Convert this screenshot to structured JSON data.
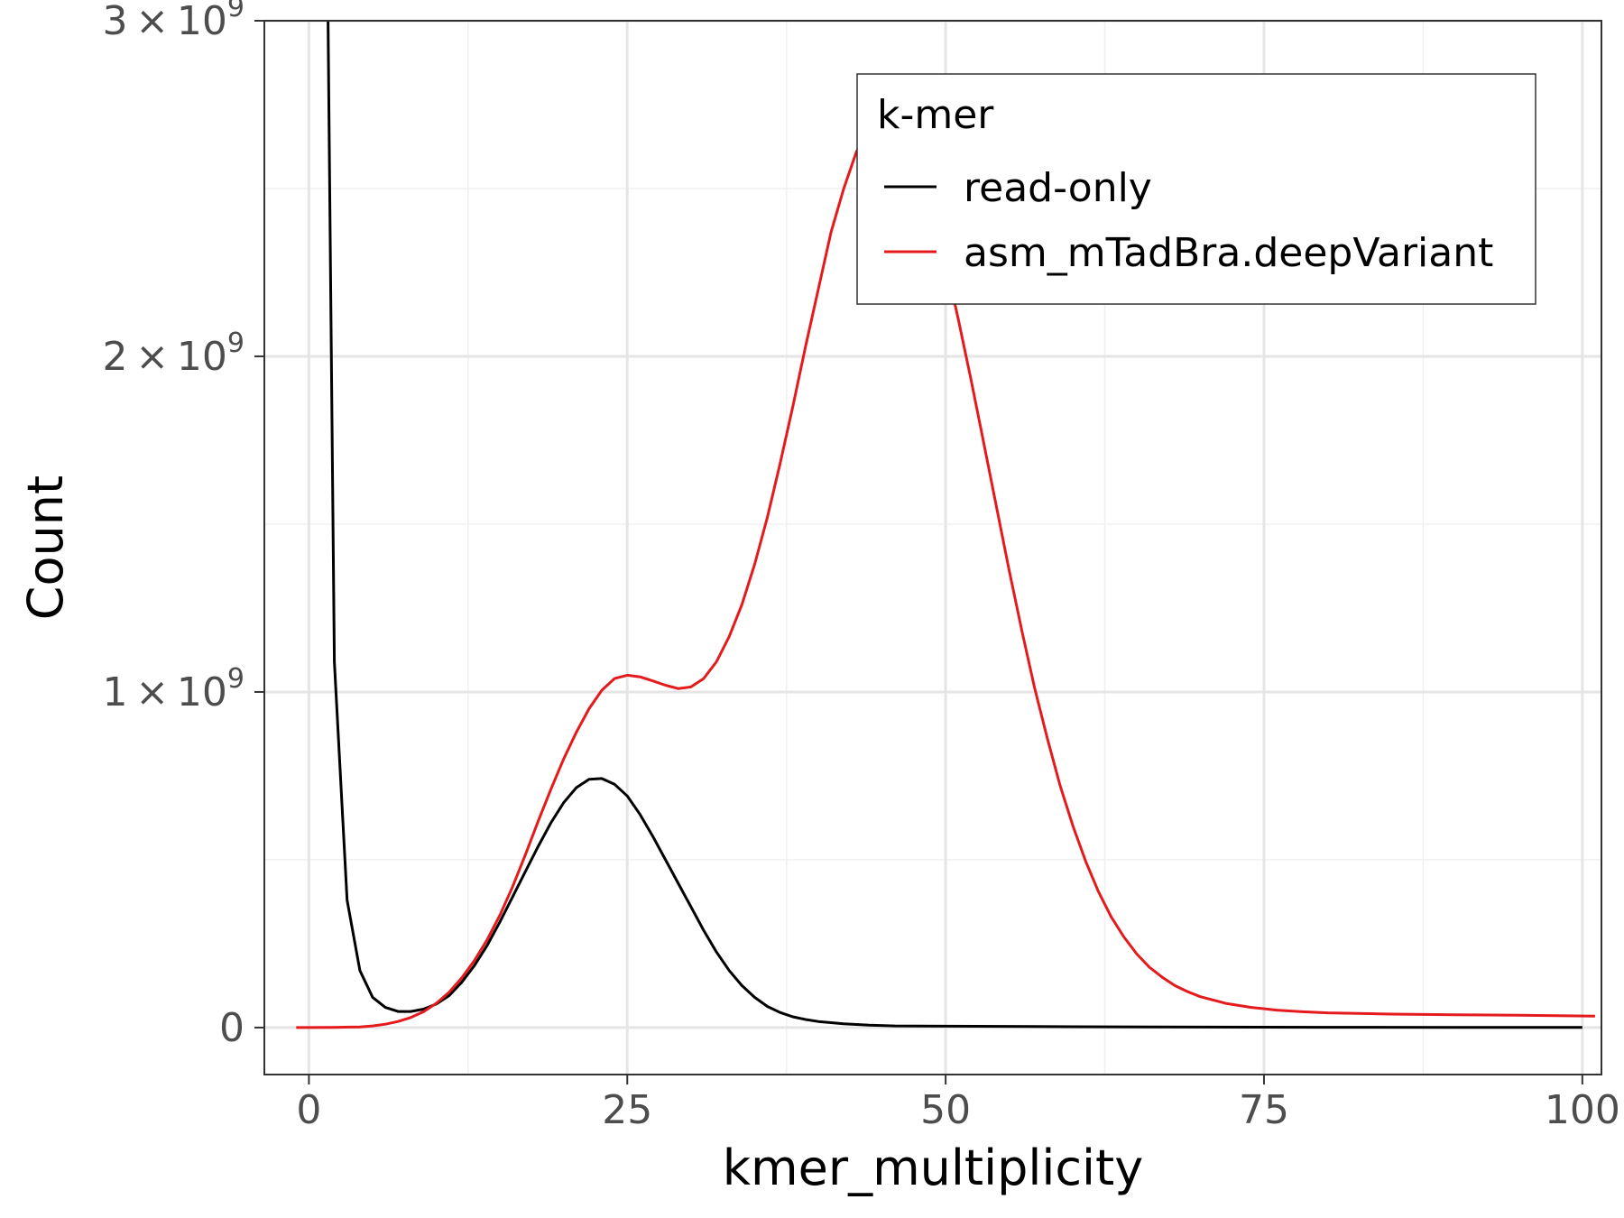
{
  "chart_data": {
    "type": "line",
    "xlabel": "kmer_multiplicity",
    "ylabel": "Count",
    "xlim": [
      -3.5,
      101.5
    ],
    "ylim": [
      -140000000,
      3000000000
    ],
    "x_ticks": [
      0,
      25,
      50,
      75,
      100
    ],
    "x_tick_labels": [
      "0",
      "25",
      "50",
      "75",
      "100"
    ],
    "y_ticks": [
      0,
      1000000000,
      2000000000,
      3000000000
    ],
    "y_tick_labels": [
      {
        "text": "0",
        "mantissa": "",
        "exponent": ""
      },
      {
        "text": "1 × 10^9",
        "mantissa": "1",
        "exponent": "9"
      },
      {
        "text": "2 × 10^9",
        "mantissa": "2",
        "exponent": "9"
      },
      {
        "text": "3 × 10^9",
        "mantissa": "3",
        "exponent": "9"
      }
    ],
    "grid": true,
    "legend": {
      "title": "k-mer",
      "position": "top-right"
    },
    "series": [
      {
        "name": "read-only",
        "color": "#000000",
        "x": [
          1.5,
          2,
          3,
          4,
          5,
          6,
          7,
          8,
          9,
          10,
          11,
          12,
          13,
          14,
          15,
          16,
          17,
          18,
          19,
          20,
          21,
          22,
          23,
          24,
          25,
          26,
          27,
          28,
          29,
          30,
          31,
          32,
          33,
          34,
          35,
          36,
          37,
          38,
          39,
          40,
          42,
          44,
          46,
          50,
          60,
          70,
          80,
          90,
          100
        ],
        "y": [
          3000000000,
          1090000000,
          380000000,
          170000000,
          90000000,
          60000000,
          48000000,
          48000000,
          55000000,
          70000000,
          95000000,
          135000000,
          185000000,
          245000000,
          315000000,
          390000000,
          465000000,
          540000000,
          610000000,
          670000000,
          715000000,
          740000000,
          742000000,
          725000000,
          690000000,
          635000000,
          570000000,
          500000000,
          430000000,
          360000000,
          290000000,
          225000000,
          170000000,
          125000000,
          90000000,
          63000000,
          45000000,
          32000000,
          24000000,
          18000000,
          11000000,
          7000000,
          5000000,
          4000000,
          2500000,
          1500000,
          1000000,
          700000,
          500000
        ]
      },
      {
        "name": "asm_mTadBra.deepVariant",
        "color": "#e41a1c",
        "x": [
          -1,
          0,
          2,
          4,
          5,
          6,
          7,
          8,
          9,
          10,
          11,
          12,
          13,
          14,
          15,
          16,
          17,
          18,
          19,
          20,
          21,
          22,
          23,
          24,
          25,
          26,
          27,
          28,
          29,
          30,
          31,
          32,
          33,
          34,
          35,
          36,
          37,
          38,
          39,
          40,
          41,
          42,
          43,
          44,
          45,
          46,
          47,
          48,
          49,
          50,
          51,
          52,
          53,
          54,
          55,
          56,
          57,
          58,
          59,
          60,
          61,
          62,
          63,
          64,
          65,
          66,
          67,
          68,
          69,
          70,
          72,
          74,
          76,
          78,
          80,
          85,
          90,
          95,
          101
        ],
        "y": [
          0,
          0,
          500000,
          2000000,
          5000000,
          10000000,
          18000000,
          30000000,
          47000000,
          72000000,
          105000000,
          148000000,
          200000000,
          262000000,
          335000000,
          420000000,
          515000000,
          615000000,
          710000000,
          800000000,
          880000000,
          950000000,
          1005000000,
          1040000000,
          1050000000,
          1045000000,
          1033000000,
          1020000000,
          1010000000,
          1015000000,
          1040000000,
          1090000000,
          1165000000,
          1260000000,
          1380000000,
          1520000000,
          1680000000,
          1850000000,
          2030000000,
          2200000000,
          2370000000,
          2500000000,
          2610000000,
          2680000000,
          2710000000,
          2700000000,
          2650000000,
          2560000000,
          2430000000,
          2280000000,
          2110000000,
          1930000000,
          1740000000,
          1550000000,
          1360000000,
          1180000000,
          1010000000,
          860000000,
          720000000,
          600000000,
          495000000,
          405000000,
          330000000,
          270000000,
          220000000,
          180000000,
          150000000,
          125000000,
          107000000,
          92000000,
          72000000,
          60000000,
          52000000,
          47000000,
          44000000,
          40000000,
          38000000,
          37000000,
          34000000
        ]
      }
    ]
  }
}
